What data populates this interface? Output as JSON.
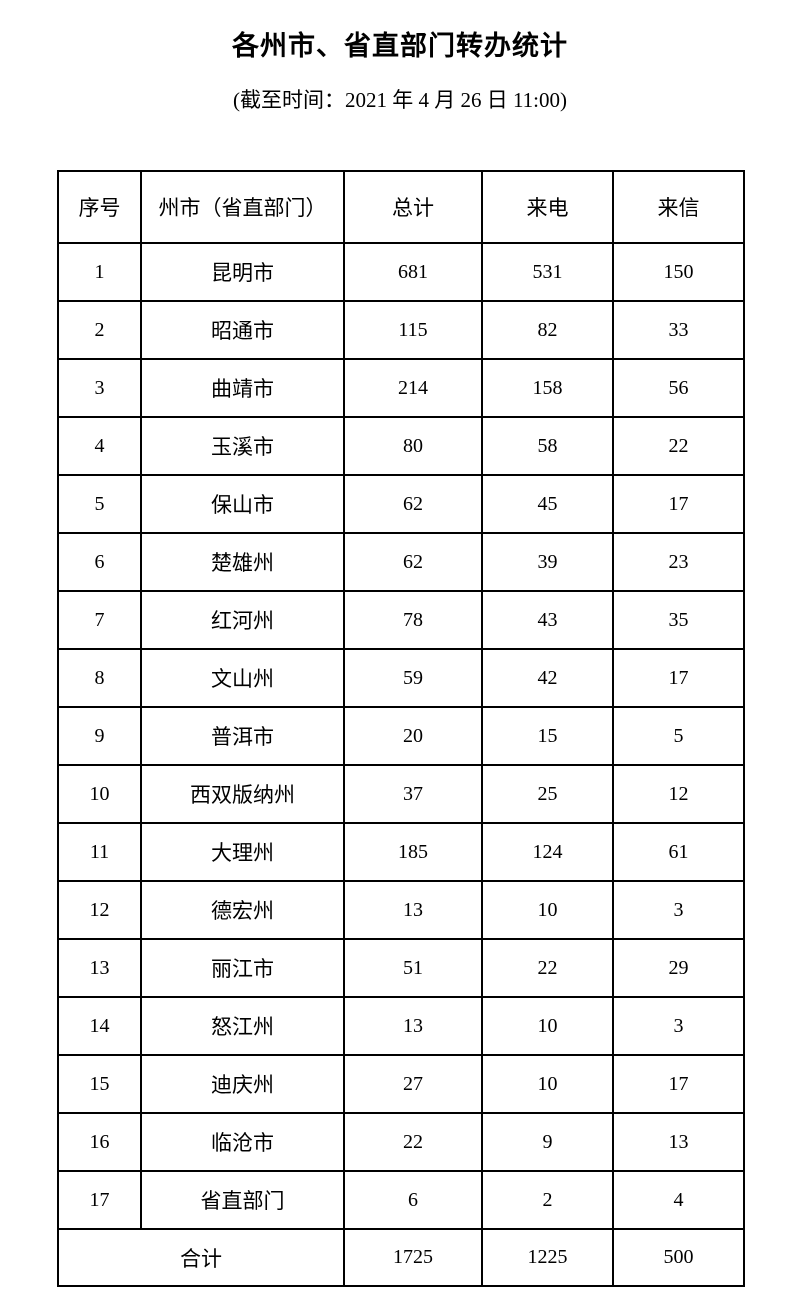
{
  "page": {
    "title": "各州市、省直部门转办统计",
    "subtitle": "(截至时间：2021 年 4 月 26 日 11:00)"
  },
  "table": {
    "headers": [
      "序号",
      "州市（省直部门）",
      "总计",
      "来电",
      "来信"
    ],
    "rows": [
      {
        "no": "1",
        "name": "昆明市",
        "total": "681",
        "calls": "531",
        "letters": "150"
      },
      {
        "no": "2",
        "name": "昭通市",
        "total": "115",
        "calls": "82",
        "letters": "33"
      },
      {
        "no": "3",
        "name": "曲靖市",
        "total": "214",
        "calls": "158",
        "letters": "56"
      },
      {
        "no": "4",
        "name": "玉溪市",
        "total": "80",
        "calls": "58",
        "letters": "22"
      },
      {
        "no": "5",
        "name": "保山市",
        "total": "62",
        "calls": "45",
        "letters": "17"
      },
      {
        "no": "6",
        "name": "楚雄州",
        "total": "62",
        "calls": "39",
        "letters": "23"
      },
      {
        "no": "7",
        "name": "红河州",
        "total": "78",
        "calls": "43",
        "letters": "35"
      },
      {
        "no": "8",
        "name": "文山州",
        "total": "59",
        "calls": "42",
        "letters": "17"
      },
      {
        "no": "9",
        "name": "普洱市",
        "total": "20",
        "calls": "15",
        "letters": "5"
      },
      {
        "no": "10",
        "name": "西双版纳州",
        "total": "37",
        "calls": "25",
        "letters": "12"
      },
      {
        "no": "11",
        "name": "大理州",
        "total": "185",
        "calls": "124",
        "letters": "61"
      },
      {
        "no": "12",
        "name": "德宏州",
        "total": "13",
        "calls": "10",
        "letters": "3"
      },
      {
        "no": "13",
        "name": "丽江市",
        "total": "51",
        "calls": "22",
        "letters": "29"
      },
      {
        "no": "14",
        "name": "怒江州",
        "total": "13",
        "calls": "10",
        "letters": "3"
      },
      {
        "no": "15",
        "name": "迪庆州",
        "total": "27",
        "calls": "10",
        "letters": "17"
      },
      {
        "no": "16",
        "name": "临沧市",
        "total": "22",
        "calls": "9",
        "letters": "13"
      },
      {
        "no": "17",
        "name": "省直部门",
        "total": "6",
        "calls": "2",
        "letters": "4"
      }
    ],
    "footer": {
      "label": "合计",
      "total": "1725",
      "calls": "1225",
      "letters": "500"
    }
  },
  "colors": {
    "background": "#ffffff",
    "text": "#000000",
    "border": "#000000"
  }
}
